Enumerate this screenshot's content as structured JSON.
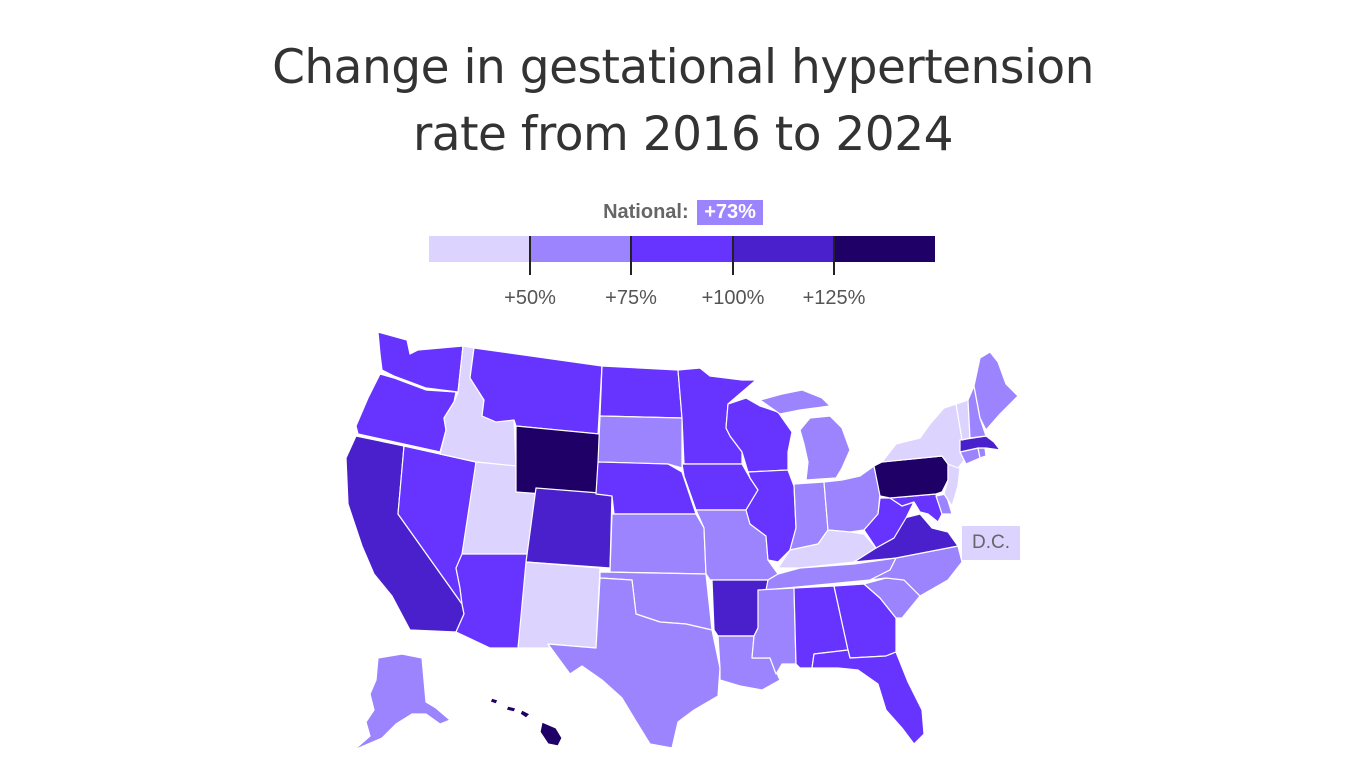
{
  "title": {
    "line1": "Change in gestational hypertension",
    "line2": "rate from 2016 to 2024"
  },
  "national": {
    "label": "National:",
    "value": "+73%",
    "color": "#9c84ff"
  },
  "legend": {
    "bins": [
      {
        "color": "#ddd3ff"
      },
      {
        "color": "#9c84ff"
      },
      {
        "color": "#6633ff"
      },
      {
        "color": "#4a1fcc"
      },
      {
        "color": "#3d15b5"
      },
      {
        "color": "#1f0066"
      }
    ],
    "tick_labels": [
      "+50%",
      "+75%",
      "+100%",
      "+125%"
    ]
  },
  "dc_label": "D.C.",
  "dc_color": "#ddd3ff",
  "state_colors": {
    "WA": "#6633ff",
    "OR": "#6633ff",
    "CA": "#4a1fcc",
    "NV": "#6633ff",
    "ID": "#ddd3ff",
    "UT": "#ddd3ff",
    "AZ": "#6633ff",
    "MT": "#6633ff",
    "WY": "#1f0066",
    "CO": "#4a1fcc",
    "NM": "#ddd3ff",
    "ND": "#6633ff",
    "SD": "#9c84ff",
    "NE": "#6633ff",
    "KS": "#9c84ff",
    "OK": "#9c84ff",
    "TX": "#9c84ff",
    "MN": "#6633ff",
    "IA": "#6633ff",
    "MO": "#9c84ff",
    "AR": "#4a1fcc",
    "LA": "#9c84ff",
    "WI": "#6633ff",
    "IL": "#6633ff",
    "MI": "#9c84ff",
    "IN": "#9c84ff",
    "OH": "#9c84ff",
    "KY": "#ddd3ff",
    "TN": "#9c84ff",
    "MS": "#9c84ff",
    "AL": "#6633ff",
    "GA": "#6633ff",
    "FL": "#6633ff",
    "SC": "#9c84ff",
    "NC": "#9c84ff",
    "VA": "#4a1fcc",
    "WV": "#6633ff",
    "MD": "#6633ff",
    "DE": "#9c84ff",
    "PA": "#1f0066",
    "NJ": "#ddd3ff",
    "NY": "#ddd3ff",
    "CT": "#9c84ff",
    "RI": "#9c84ff",
    "MA": "#4a1fcc",
    "VT": "#ddd3ff",
    "NH": "#9c84ff",
    "ME": "#9c84ff",
    "AK": "#9c84ff",
    "HI": "#1f0066"
  }
}
